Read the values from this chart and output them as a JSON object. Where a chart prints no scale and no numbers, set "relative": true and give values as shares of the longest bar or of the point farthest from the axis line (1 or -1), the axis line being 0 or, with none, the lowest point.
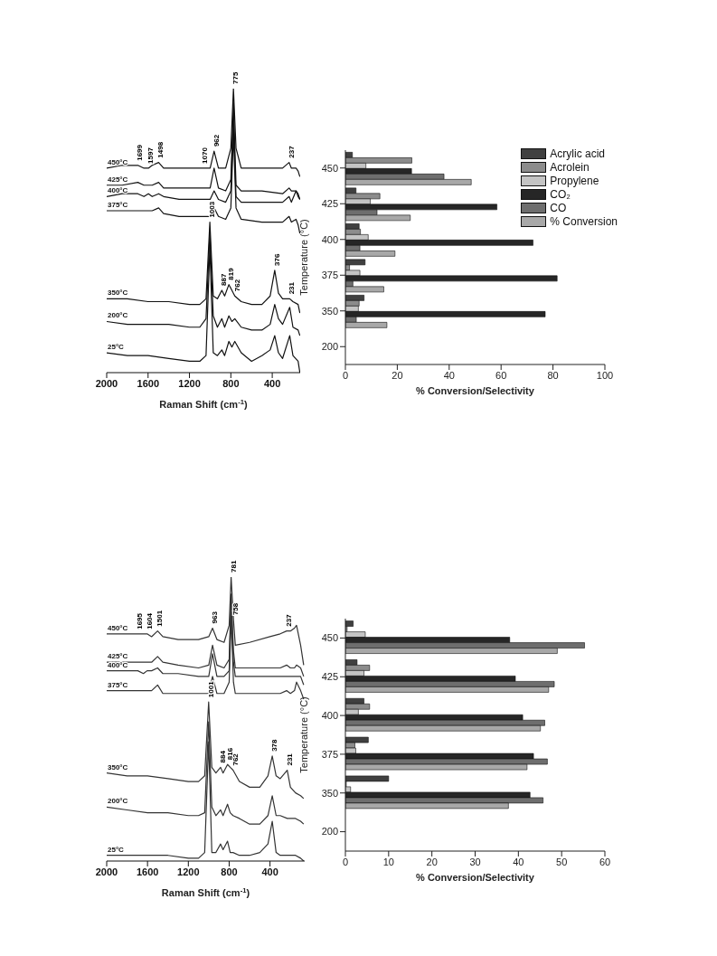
{
  "chart_data": [
    {
      "type": "line",
      "relative": true,
      "xlim": [
        2000,
        130
      ],
      "xticks": [
        2000,
        1600,
        1200,
        800,
        400
      ],
      "xlabel": "Raman Shift (cm$^{-1}$)",
      "marker": "none",
      "line_style": "solid",
      "series": [
        {
          "name": "450°C",
          "color": "#111111",
          "x": [
            2000,
            1850,
            1699,
            1640,
            1597,
            1560,
            1498,
            1450,
            1300,
            1100,
            1000,
            962,
            920,
            850,
            800,
            775,
            750,
            700,
            500,
            300,
            237,
            215,
            170,
            150,
            133
          ],
          "values": [
            0.72,
            0.73,
            0.73,
            0.72,
            0.72,
            0.73,
            0.74,
            0.72,
            0.72,
            0.72,
            0.72,
            0.78,
            0.72,
            0.72,
            0.79,
            1,
            0.79,
            0.72,
            0.72,
            0.72,
            0.74,
            0.72,
            0.72,
            0.71,
            0.69
          ]
        },
        {
          "name": "425°C",
          "color": "#111111",
          "x": [
            2000,
            1850,
            1699,
            1640,
            1597,
            1560,
            1498,
            1450,
            1300,
            1100,
            1000,
            962,
            920,
            850,
            800,
            775,
            750,
            700,
            500,
            300,
            237,
            215,
            170,
            150,
            133
          ],
          "values": [
            0.66,
            0.66,
            0.67,
            0.66,
            0.66,
            0.66,
            0.67,
            0.65,
            0.65,
            0.65,
            0.65,
            0.72,
            0.65,
            0.64,
            0.68,
            0.95,
            0.66,
            0.64,
            0.64,
            0.63,
            0.65,
            0.64,
            0.64,
            0.63,
            0.61
          ]
        },
        {
          "name": "400°C",
          "color": "#111111",
          "x": [
            2000,
            1850,
            1699,
            1640,
            1597,
            1560,
            1498,
            1450,
            1300,
            1100,
            1000,
            962,
            920,
            850,
            800,
            775,
            750,
            700,
            500,
            300,
            237,
            215,
            170,
            150,
            133
          ],
          "values": [
            0.62,
            0.63,
            0.63,
            0.62,
            0.63,
            0.62,
            0.63,
            0.62,
            0.61,
            0.61,
            0.61,
            0.64,
            0.61,
            0.6,
            0.64,
            0.89,
            0.62,
            0.6,
            0.6,
            0.6,
            0.62,
            0.6,
            0.64,
            0.62,
            0.61
          ]
        },
        {
          "name": "375°C",
          "color": "#111111",
          "x": [
            2000,
            1850,
            1699,
            1640,
            1597,
            1560,
            1498,
            1450,
            1300,
            1100,
            1000,
            962,
            920,
            850,
            800,
            775,
            750,
            700,
            500,
            300,
            237,
            215,
            170,
            150,
            133
          ],
          "values": [
            0.57,
            0.57,
            0.57,
            0.57,
            0.57,
            0.57,
            0.58,
            0.56,
            0.55,
            0.55,
            0.55,
            0.58,
            0.55,
            0.54,
            0.58,
            0.84,
            0.58,
            0.54,
            0.53,
            0.53,
            0.55,
            0.53,
            0.54,
            0.52,
            0.49
          ]
        },
        {
          "name": "350°C",
          "color": "#111111",
          "x": [
            2000,
            1800,
            1600,
            1400,
            1200,
            1100,
            1040,
            1003,
            970,
            930,
            887,
            860,
            819,
            790,
            762,
            700,
            600,
            500,
            420,
            376,
            340,
            300,
            231,
            200,
            150,
            133
          ],
          "values": [
            0.26,
            0.26,
            0.25,
            0.25,
            0.24,
            0.24,
            0.26,
            0.53,
            0.27,
            0.26,
            0.29,
            0.27,
            0.31,
            0.29,
            0.27,
            0.25,
            0.24,
            0.24,
            0.27,
            0.36,
            0.28,
            0.26,
            0.26,
            0.25,
            0.24,
            0.21
          ]
        },
        {
          "name": "200°C",
          "color": "#111111",
          "x": [
            2000,
            1800,
            1600,
            1400,
            1200,
            1100,
            1040,
            1003,
            970,
            930,
            887,
            860,
            819,
            790,
            762,
            700,
            600,
            500,
            420,
            376,
            340,
            300,
            231,
            200,
            150,
            133
          ],
          "values": [
            0.18,
            0.17,
            0.17,
            0.17,
            0.16,
            0.16,
            0.19,
            0.49,
            0.2,
            0.16,
            0.19,
            0.16,
            0.2,
            0.18,
            0.19,
            0.16,
            0.15,
            0.15,
            0.17,
            0.24,
            0.19,
            0.17,
            0.23,
            0.16,
            0.15,
            0.13
          ]
        },
        {
          "name": "25°C",
          "color": "#111111",
          "x": [
            2000,
            1800,
            1600,
            1400,
            1200,
            1100,
            1040,
            1003,
            970,
            930,
            887,
            860,
            819,
            790,
            762,
            700,
            600,
            500,
            420,
            376,
            340,
            300,
            231,
            200,
            150,
            133
          ],
          "values": [
            0.07,
            0.06,
            0.06,
            0.05,
            0.04,
            0.04,
            0.06,
            0.44,
            0.07,
            0.06,
            0.08,
            0.06,
            0.11,
            0.09,
            0.11,
            0.07,
            0.04,
            0.06,
            0.08,
            0.13,
            0.07,
            0.05,
            0.13,
            0.06,
            0.04,
            0
          ]
        }
      ],
      "annotations": [
        {
          "text": "775",
          "x": 775,
          "y": 1
        },
        {
          "text": "1699",
          "x": 1699,
          "y": 0.73
        },
        {
          "text": "1597",
          "x": 1597,
          "y": 0.72
        },
        {
          "text": "1498",
          "x": 1498,
          "y": 0.74
        },
        {
          "text": "1070",
          "x": 1070,
          "y": 0.72
        },
        {
          "text": "962",
          "x": 962,
          "y": 0.78
        },
        {
          "text": "237",
          "x": 237,
          "y": 0.74
        },
        {
          "text": "1003",
          "x": 1003,
          "y": 0.53
        },
        {
          "text": "887",
          "x": 887,
          "y": 0.29
        },
        {
          "text": "819",
          "x": 819,
          "y": 0.31
        },
        {
          "text": "762",
          "x": 762,
          "y": 0.27
        },
        {
          "text": "376",
          "x": 376,
          "y": 0.36
        },
        {
          "text": "231",
          "x": 231,
          "y": 0.26
        }
      ]
    },
    {
      "type": "bar",
      "orientation": "horizontal",
      "categories": [
        "450",
        "425",
        "400",
        "375",
        "350",
        "200"
      ],
      "xlim": [
        0,
        100
      ],
      "xticks": [
        0,
        20,
        40,
        60,
        80,
        100
      ],
      "xlabel": "% Conversion/Selectivity",
      "ylabel": "Temperature (°C)",
      "legend": "top right",
      "series": [
        {
          "name": "Acrylic acid",
          "color": "#404040",
          "values": [
            2.7,
            4.1,
            5.3,
            7.6,
            7.2,
            null
          ]
        },
        {
          "name": "Acrolein",
          "color": "#8c8c8c",
          "values": [
            25.6,
            13.3,
            5.8,
            1.6,
            5.3,
            null
          ]
        },
        {
          "name": "Propylene",
          "color": "#c4c4c4",
          "values": [
            7.9,
            9.6,
            8.8,
            5.6,
            5,
            null
          ]
        },
        {
          "name": "CO₂",
          "color": "#262626",
          "values": [
            25.5,
            58.4,
            72.3,
            81.6,
            77,
            null
          ]
        },
        {
          "name": "CO",
          "color": "#6e6e6e",
          "values": [
            38,
            12.2,
            5.6,
            2.9,
            4.2,
            null
          ]
        },
        {
          "name": "% Conversion",
          "color": "#a8a8a8",
          "values": [
            48.5,
            25,
            19.1,
            14.8,
            16,
            null
          ]
        }
      ]
    },
    {
      "type": "line",
      "relative": true,
      "xlim": [
        2000,
        60
      ],
      "xticks": [
        2000,
        1600,
        1200,
        800,
        400
      ],
      "xlabel": "Raman Shift (cm$^{-1}$)",
      "marker": "none",
      "line_style": "solid",
      "series": [
        {
          "name": "450°C",
          "color": "#333333",
          "x": [
            2000,
            1850,
            1695,
            1640,
            1604,
            1560,
            1501,
            1450,
            1300,
            1100,
            1000,
            963,
            920,
            850,
            800,
            781,
            758,
            740,
            600,
            400,
            300,
            237,
            200,
            160,
            140,
            100,
            70
          ],
          "values": [
            0.8,
            0.8,
            0.8,
            0.8,
            0.8,
            0.79,
            0.81,
            0.79,
            0.78,
            0.78,
            0.79,
            0.82,
            0.78,
            0.77,
            0.83,
            1,
            0.85,
            0.76,
            0.77,
            0.79,
            0.8,
            0.81,
            0.81,
            0.82,
            0.83,
            0.76,
            0.69
          ]
        },
        {
          "name": "425°C",
          "color": "#333333",
          "x": [
            2000,
            1850,
            1695,
            1640,
            1604,
            1560,
            1501,
            1450,
            1300,
            1100,
            1000,
            963,
            920,
            850,
            800,
            781,
            758,
            740,
            600,
            400,
            300,
            237,
            200,
            160,
            140,
            100,
            70
          ],
          "values": [
            0.7,
            0.7,
            0.7,
            0.7,
            0.7,
            0.7,
            0.72,
            0.7,
            0.69,
            0.68,
            0.69,
            0.76,
            0.69,
            0.68,
            0.71,
            0.94,
            0.74,
            0.68,
            0.68,
            0.68,
            0.68,
            0.69,
            0.68,
            0.68,
            0.69,
            0.68,
            0.65
          ]
        },
        {
          "name": "400°C",
          "color": "#333333",
          "x": [
            2000,
            1850,
            1695,
            1640,
            1604,
            1560,
            1501,
            1450,
            1300,
            1100,
            1000,
            963,
            920,
            850,
            800,
            781,
            758,
            740,
            600,
            400,
            300,
            237,
            200,
            160,
            140,
            100,
            70
          ],
          "values": [
            0.67,
            0.67,
            0.67,
            0.66,
            0.67,
            0.67,
            0.68,
            0.66,
            0.66,
            0.65,
            0.65,
            0.73,
            0.65,
            0.65,
            0.67,
            0.91,
            0.7,
            0.65,
            0.65,
            0.65,
            0.65,
            0.65,
            0.65,
            0.65,
            0.65,
            0.65,
            0.62
          ]
        },
        {
          "name": "375°C",
          "color": "#333333",
          "x": [
            2000,
            1850,
            1695,
            1640,
            1604,
            1560,
            1501,
            1450,
            1300,
            1100,
            1000,
            963,
            920,
            850,
            800,
            781,
            758,
            740,
            600,
            400,
            300,
            237,
            200,
            160,
            140,
            100,
            70
          ],
          "values": [
            0.6,
            0.6,
            0.6,
            0.6,
            0.6,
            0.6,
            0.62,
            0.59,
            0.59,
            0.59,
            0.59,
            0.65,
            0.59,
            0.59,
            0.63,
            0.86,
            0.63,
            0.59,
            0.59,
            0.59,
            0.59,
            0.6,
            0.59,
            0.6,
            0.63,
            0.6,
            0.57
          ]
        },
        {
          "name": "350°C",
          "color": "#333333",
          "x": [
            2000,
            1800,
            1600,
            1400,
            1200,
            1100,
            1040,
            1001,
            970,
            930,
            884,
            860,
            816,
            790,
            762,
            700,
            600,
            500,
            420,
            378,
            340,
            300,
            231,
            200,
            150,
            100,
            70
          ],
          "values": [
            0.31,
            0.3,
            0.3,
            0.29,
            0.28,
            0.28,
            0.3,
            0.56,
            0.33,
            0.31,
            0.33,
            0.31,
            0.34,
            0.33,
            0.32,
            0.28,
            0.26,
            0.26,
            0.3,
            0.37,
            0.3,
            0.29,
            0.32,
            0.26,
            0.24,
            0.23,
            0.22
          ]
        },
        {
          "name": "200°C",
          "color": "#333333",
          "x": [
            2000,
            1800,
            1600,
            1400,
            1200,
            1100,
            1040,
            1001,
            970,
            930,
            884,
            860,
            816,
            790,
            762,
            700,
            600,
            500,
            420,
            378,
            340,
            300,
            231,
            200,
            150,
            100,
            70
          ],
          "values": [
            0.19,
            0.18,
            0.17,
            0.17,
            0.16,
            0.16,
            0.17,
            0.49,
            0.19,
            0.16,
            0.18,
            0.16,
            0.2,
            0.17,
            0.16,
            0.15,
            0.13,
            0.13,
            0.16,
            0.23,
            0.16,
            0.16,
            0.15,
            0.15,
            0.15,
            0.14,
            0.13
          ]
        },
        {
          "name": "25°C",
          "color": "#333333",
          "x": [
            2000,
            1800,
            1600,
            1400,
            1200,
            1100,
            1040,
            1001,
            970,
            930,
            884,
            860,
            816,
            790,
            762,
            700,
            600,
            500,
            420,
            378,
            340,
            300,
            231,
            200,
            150,
            100,
            70
          ],
          "values": [
            0.02,
            0.02,
            0.02,
            0.02,
            0.01,
            0.01,
            0.03,
            0.42,
            0.03,
            0.03,
            0.06,
            0.04,
            0.07,
            0.03,
            0.03,
            0.02,
            0.02,
            0.03,
            0.06,
            0.14,
            0.03,
            0.02,
            0.02,
            0.02,
            0.02,
            0.01,
            0
          ]
        }
      ],
      "annotations": [
        {
          "text": "781",
          "x": 781,
          "y": 1
        },
        {
          "text": "1695",
          "x": 1695,
          "y": 0.8
        },
        {
          "text": "1604",
          "x": 1604,
          "y": 0.8
        },
        {
          "text": "1501",
          "x": 1501,
          "y": 0.81
        },
        {
          "text": "963",
          "x": 963,
          "y": 0.82
        },
        {
          "text": "758",
          "x": 758,
          "y": 0.85
        },
        {
          "text": "237",
          "x": 237,
          "y": 0.81
        },
        {
          "text": "1001",
          "x": 1001,
          "y": 0.56
        },
        {
          "text": "884",
          "x": 884,
          "y": 0.33
        },
        {
          "text": "816",
          "x": 816,
          "y": 0.34
        },
        {
          "text": "762",
          "x": 762,
          "y": 0.32
        },
        {
          "text": "378",
          "x": 378,
          "y": 0.37
        },
        {
          "text": "231",
          "x": 231,
          "y": 0.32
        }
      ]
    },
    {
      "type": "bar",
      "orientation": "horizontal",
      "categories": [
        "450",
        "425",
        "400",
        "375",
        "350",
        "200"
      ],
      "xlim": [
        0,
        60
      ],
      "xticks": [
        0,
        10,
        20,
        30,
        40,
        50,
        60
      ],
      "xlabel": "% Conversion/Selectivity",
      "ylabel": "Temperature (°C)",
      "series": [
        {
          "color": "#404040",
          "values": [
            1.8,
            2.7,
            4.3,
            5.3,
            10,
            null
          ]
        },
        {
          "color": "#8c8c8c",
          "values": [
            0.4,
            5.6,
            5.6,
            2.2,
            0.2,
            null
          ]
        },
        {
          "color": "#c4c4c4",
          "values": [
            4.6,
            4.3,
            3,
            2.4,
            1.2,
            null
          ]
        },
        {
          "color": "#262626",
          "values": [
            38,
            39.3,
            41,
            43.5,
            42.7,
            null
          ]
        },
        {
          "color": "#6e6e6e",
          "values": [
            55.3,
            48.3,
            46.1,
            46.7,
            45.7,
            null
          ]
        },
        {
          "color": "#a8a8a8",
          "values": [
            49,
            47,
            45.1,
            42,
            37.7,
            null
          ]
        }
      ]
    }
  ]
}
